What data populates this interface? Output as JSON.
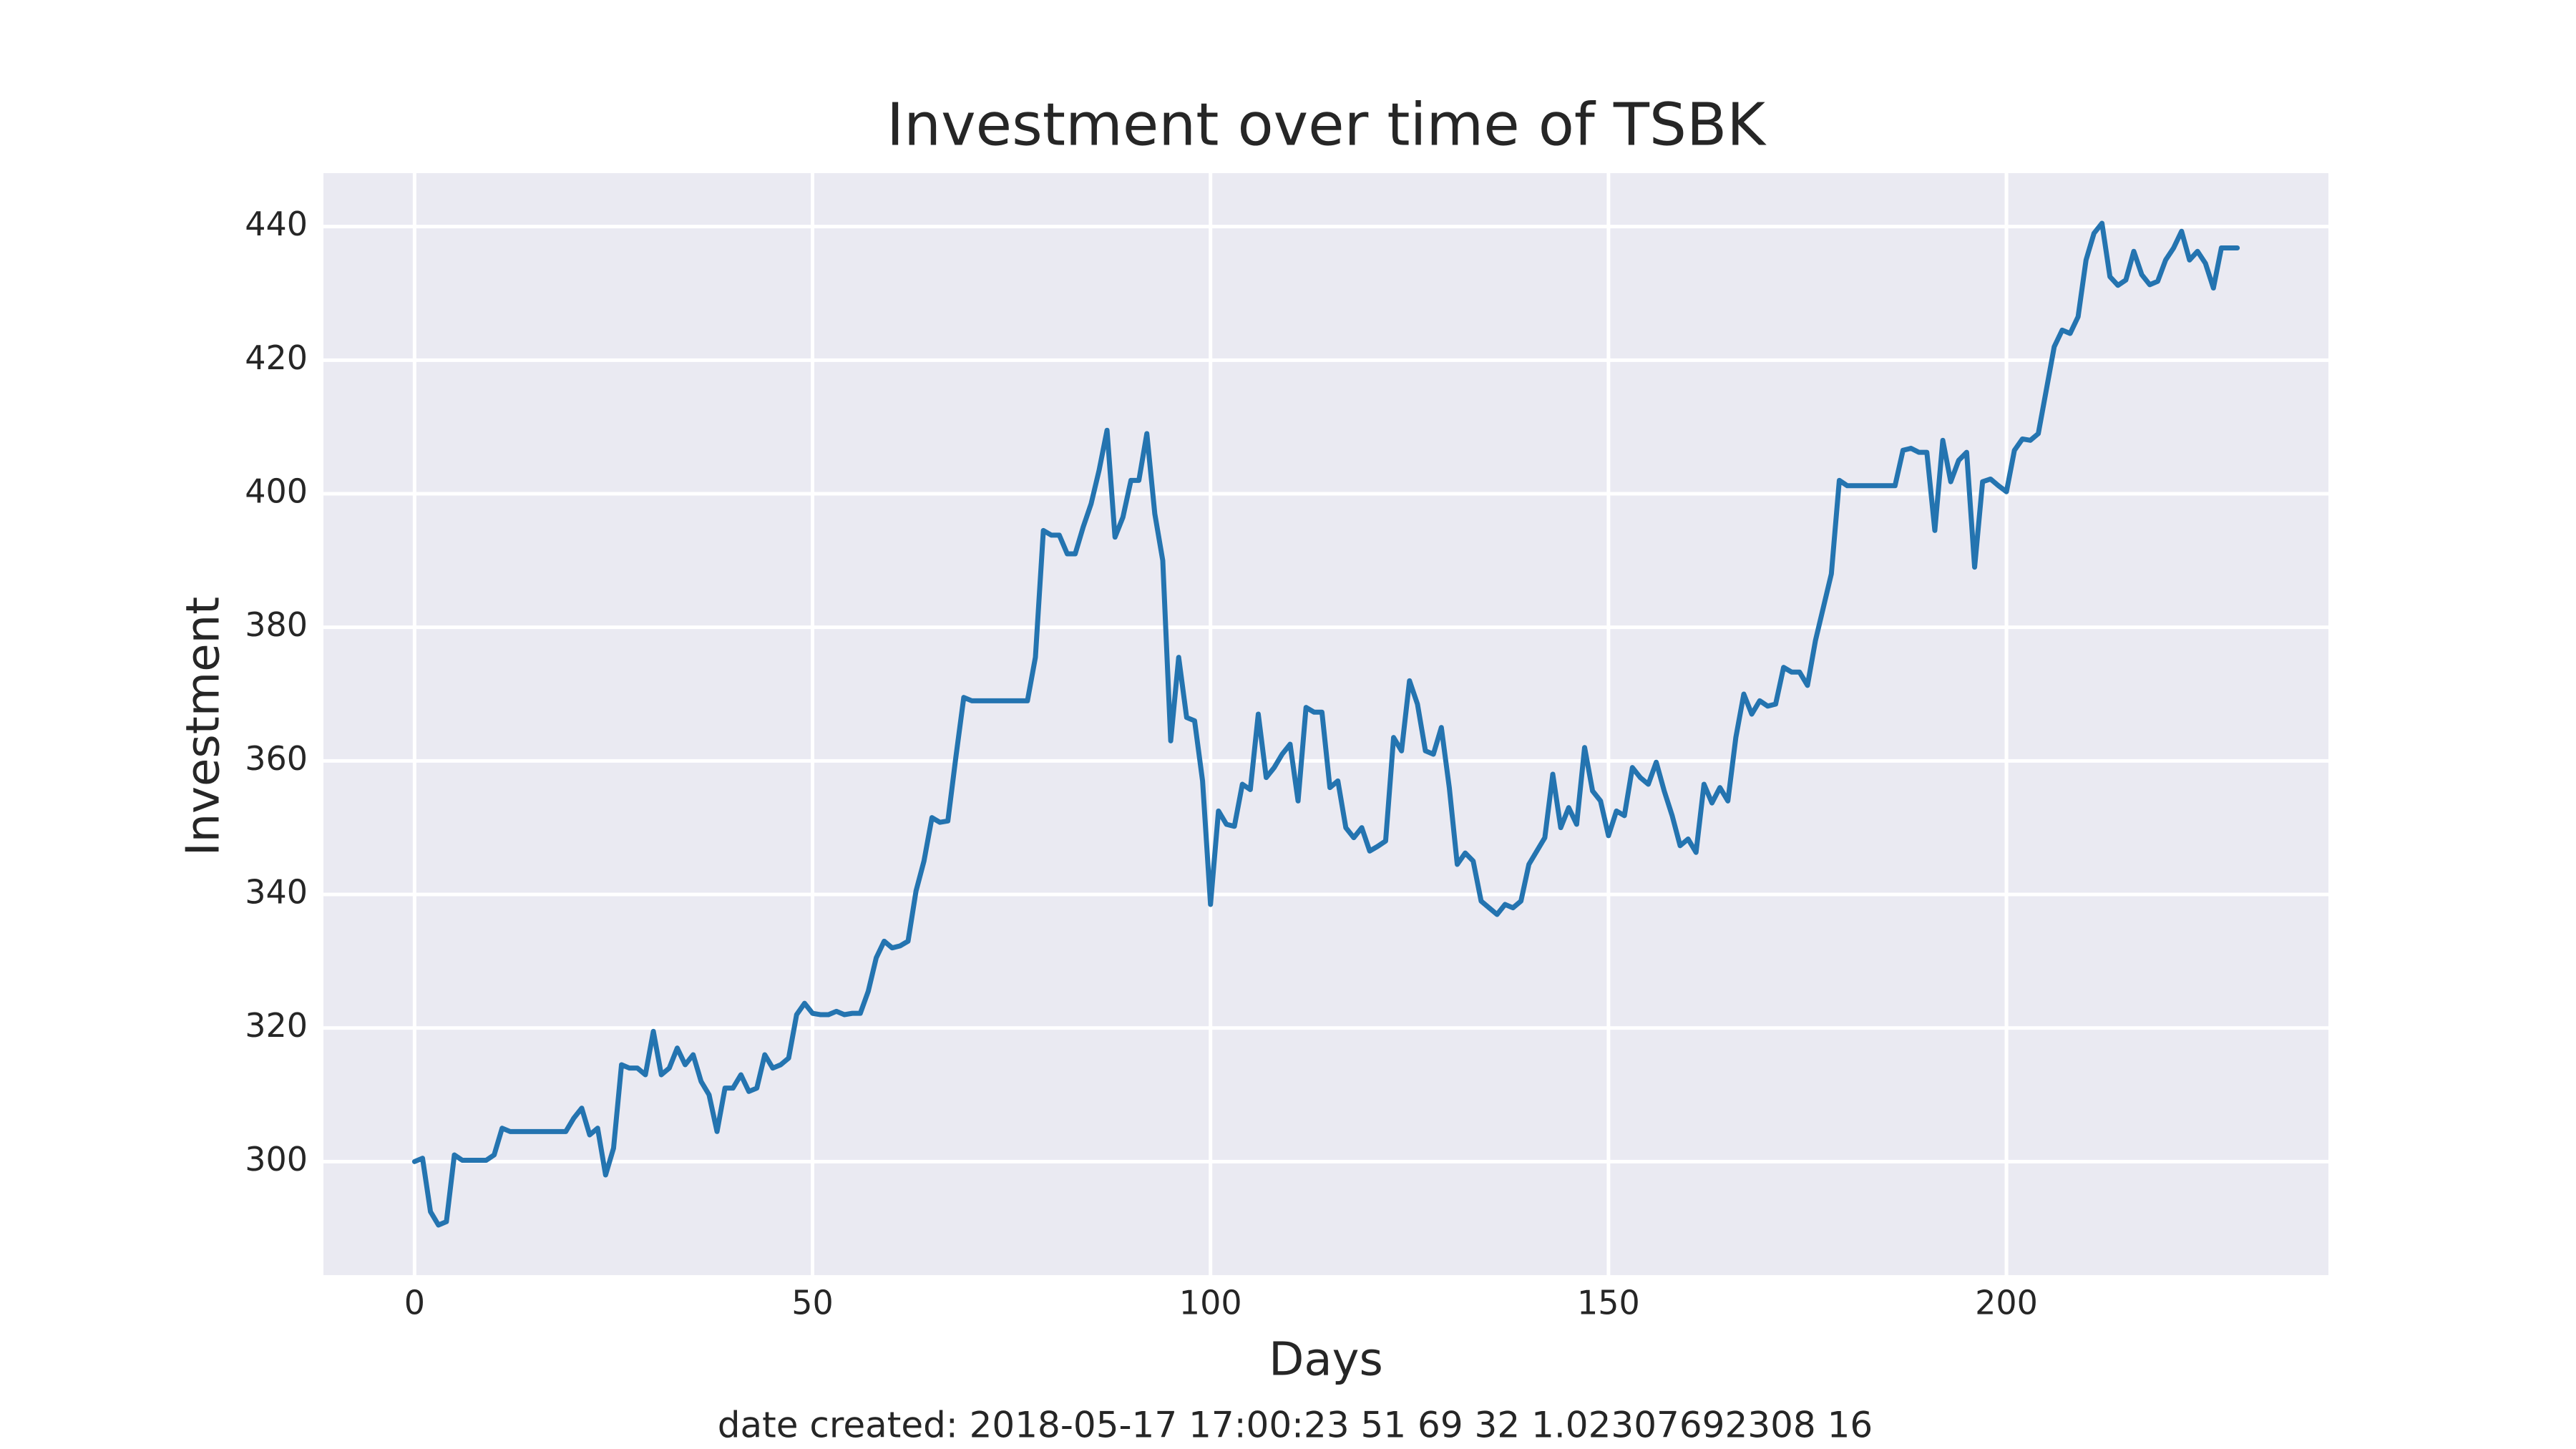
{
  "chart_data": {
    "type": "line",
    "title": "Investment over time of TSBK",
    "x_label": "Days",
    "y_label": "Investment",
    "annotation": "date created: 2018-05-17 17:00:23 51 69 32 1.02307692308 16",
    "color": "#2474b0",
    "grid": true,
    "xlim": [
      -11.45,
      240.45
    ],
    "ylim": [
      283,
      448
    ],
    "xticks": [
      0,
      50,
      100,
      150,
      200
    ],
    "yticks": [
      300,
      320,
      340,
      360,
      380,
      400,
      420,
      440
    ],
    "x": [
      0,
      1,
      2,
      3,
      4,
      5,
      6,
      7,
      8,
      9,
      10,
      11,
      12,
      13,
      14,
      15,
      16,
      17,
      18,
      19,
      20,
      21,
      22,
      23,
      24,
      25,
      26,
      27,
      28,
      29,
      30,
      31,
      32,
      33,
      34,
      35,
      36,
      37,
      38,
      39,
      40,
      41,
      42,
      43,
      44,
      45,
      46,
      47,
      48,
      49,
      50,
      51,
      52,
      53,
      54,
      55,
      56,
      57,
      58,
      59,
      60,
      61,
      62,
      63,
      64,
      65,
      66,
      67,
      68,
      69,
      70,
      71,
      72,
      73,
      74,
      75,
      76,
      77,
      78,
      79,
      80,
      81,
      82,
      83,
      84,
      85,
      86,
      87,
      88,
      89,
      90,
      91,
      92,
      93,
      94,
      95,
      96,
      97,
      98,
      99,
      100,
      101,
      102,
      103,
      104,
      105,
      106,
      107,
      108,
      109,
      110,
      111,
      112,
      113,
      114,
      115,
      116,
      117,
      118,
      119,
      120,
      121,
      122,
      123,
      124,
      125,
      126,
      127,
      128,
      129,
      130,
      131,
      132,
      133,
      134,
      135,
      136,
      137,
      138,
      139,
      140,
      141,
      142,
      143,
      144,
      145,
      146,
      147,
      148,
      149,
      150,
      151,
      152,
      153,
      154,
      155,
      156,
      157,
      158,
      159,
      160,
      161,
      162,
      163,
      164,
      165,
      166,
      167,
      168,
      169,
      170,
      171,
      172,
      173,
      174,
      175,
      176,
      177,
      178,
      179,
      180,
      181,
      182,
      183,
      184,
      185,
      186,
      187,
      188,
      189,
      190,
      191,
      192,
      193,
      194,
      195,
      196,
      197,
      198,
      199,
      200,
      201,
      202,
      203,
      204,
      205,
      206,
      207,
      208,
      209,
      210,
      211,
      212,
      213,
      214,
      215,
      216,
      217,
      218,
      219,
      220,
      221,
      222,
      223,
      224,
      225,
      226,
      227,
      228,
      229
    ],
    "values": [
      300,
      300.5,
      292.5,
      290.5,
      291,
      301,
      300.2,
      300.2,
      300.2,
      300.2,
      301,
      305,
      304.5,
      304.5,
      304.5,
      304.5,
      304.5,
      304.5,
      304.5,
      304.5,
      306.5,
      308,
      304,
      305,
      298,
      302,
      314.5,
      314,
      314,
      313,
      319.5,
      313,
      314,
      317,
      314.5,
      316,
      312,
      310,
      304.5,
      311,
      311,
      313,
      310.5,
      311,
      316,
      314,
      314.5,
      315.5,
      322,
      323.7,
      322.2,
      322,
      322,
      322.5,
      322,
      322.2,
      322.2,
      325.5,
      330.5,
      333,
      332,
      332.3,
      333,
      340.5,
      345,
      351.5,
      350.8,
      351,
      360.5,
      369.5,
      369,
      369,
      369,
      369,
      369,
      369,
      369,
      369,
      375.5,
      394.5,
      393.8,
      393.8,
      391,
      391,
      395,
      398.5,
      403.5,
      409.5,
      393.5,
      396.5,
      402,
      402,
      409,
      397,
      390,
      363,
      375.5,
      366.5,
      366,
      357,
      338.5,
      352.5,
      350.5,
      350.2,
      356.5,
      355.7,
      367,
      357.5,
      359,
      361,
      362.5,
      354,
      368,
      367.3,
      367.3,
      356,
      357,
      350,
      348.5,
      350,
      346.5,
      347.2,
      348,
      363.5,
      361.5,
      372,
      368.5,
      361.5,
      361,
      365,
      356,
      344.5,
      346.2,
      345,
      339,
      338,
      337,
      338.5,
      338,
      339,
      344.5,
      346.5,
      348.5,
      358,
      350,
      353,
      350.5,
      362,
      355.5,
      354,
      348.8,
      352.5,
      351.8,
      359,
      357.5,
      356.5,
      359.8,
      355.5,
      351.8,
      347.3,
      348.3,
      346.3,
      356.5,
      353.7,
      356,
      354,
      363.5,
      370,
      367,
      369,
      368.2,
      368.5,
      374,
      373.3,
      373.3,
      371.3,
      378,
      383,
      388,
      402,
      401.2,
      401.2,
      401.2,
      401.2,
      401.2,
      401.2,
      401.2,
      406.5,
      406.8,
      406.2,
      406.2,
      394.5,
      408,
      401.8,
      405,
      406.2,
      389,
      401.8,
      402.2,
      401.2,
      400.3,
      406.5,
      408.2,
      408,
      409,
      415.5,
      422,
      424.5,
      424,
      426.5,
      435,
      439,
      440.5,
      432.5,
      431.2,
      432,
      436.3,
      432.8,
      431.3,
      431.8,
      435,
      436.8,
      439.3,
      435,
      436.3,
      434.5,
      430.8,
      436.8,
      436.8,
      436.8
    ]
  }
}
